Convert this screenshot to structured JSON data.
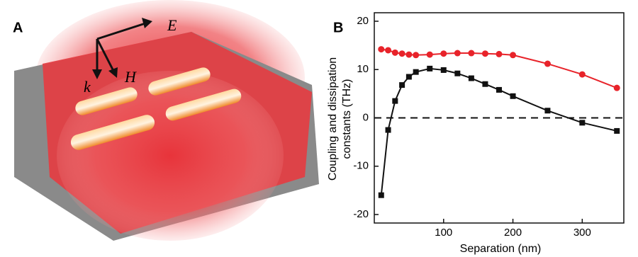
{
  "illustration": {
    "panel_label": "A",
    "labels": {
      "e_field": "E⃗",
      "k_vector": "k⃗",
      "h_field": "H⃗"
    }
  },
  "chart_data": {
    "type": "line",
    "panel_label": "B",
    "xlabel": "Separation (nm)",
    "ylabel_lines": [
      "Coupling and  dissipation",
      "constants (THz)"
    ],
    "x": [
      10,
      20,
      30,
      40,
      50,
      60,
      80,
      100,
      120,
      140,
      160,
      180,
      200,
      250,
      300,
      350
    ],
    "series": [
      {
        "color": "#e8232a",
        "marker": "circle",
        "values": [
          14.2,
          14,
          13.5,
          13.3,
          13.1,
          13,
          13.1,
          13.3,
          13.4,
          13.4,
          13.3,
          13.2,
          13,
          11.2,
          9,
          6.2
        ]
      },
      {
        "color": "#111111",
        "marker": "square",
        "values": [
          -16,
          -2.5,
          3.5,
          6.8,
          8.5,
          9.5,
          10.2,
          9.9,
          9.2,
          8.2,
          7,
          5.8,
          4.5,
          1.5,
          -1,
          -2.7
        ]
      }
    ],
    "xlim": [
      0,
      360
    ],
    "xticks": [
      100,
      200,
      300
    ],
    "ylim": [
      -20,
      20
    ],
    "yticks": [
      -20,
      -10,
      0,
      10,
      20
    ],
    "reference_line": 0
  }
}
